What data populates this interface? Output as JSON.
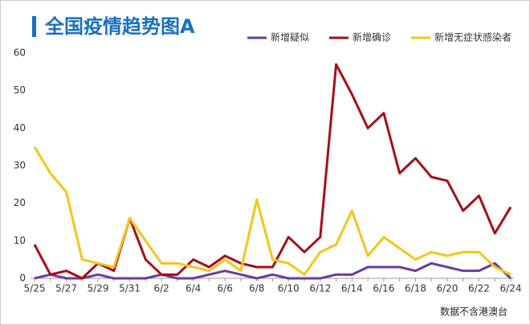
{
  "chart_data": {
    "type": "line",
    "title": "全国疫情趋势图A",
    "note": "数据不含港澳台",
    "categories": [
      "5/25",
      null,
      "5/27",
      null,
      "5/29",
      null,
      "5/31",
      null,
      "6/2",
      null,
      "6/4",
      null,
      "6/6",
      null,
      "6/8",
      null,
      "6/10",
      null,
      "6/12",
      null,
      "6/14",
      null,
      "6/16",
      null,
      "6/18",
      null,
      "6/20",
      null,
      "6/22",
      null,
      "6/24"
    ],
    "series": [
      {
        "name": "新增疑似",
        "color": "#6a3d9a",
        "values": [
          0,
          1,
          0,
          0,
          1,
          0,
          0,
          0,
          1,
          0,
          0,
          1,
          2,
          1,
          0,
          1,
          0,
          0,
          0,
          1,
          1,
          3,
          3,
          3,
          2,
          4,
          3,
          2,
          2,
          4,
          0
        ]
      },
      {
        "name": "新增确诊",
        "color": "#a50f15",
        "values": [
          9,
          1,
          2,
          0,
          4,
          2,
          16,
          5,
          1,
          1,
          5,
          3,
          6,
          4,
          3,
          3,
          11,
          7,
          11,
          57,
          49,
          40,
          44,
          28,
          32,
          27,
          26,
          18,
          22,
          12,
          19
        ]
      },
      {
        "name": "新增无症状感染者",
        "color": "#f5c518",
        "values": [
          35,
          28,
          23,
          5,
          4,
          3,
          16,
          10,
          4,
          4,
          3,
          2,
          5,
          2,
          21,
          5,
          4,
          1,
          7,
          9,
          18,
          6,
          11,
          8,
          5,
          7,
          6,
          7,
          7,
          3,
          1
        ]
      }
    ],
    "ylim": [
      0,
      60
    ],
    "yticks": [
      0,
      10,
      20,
      30,
      40,
      50,
      60
    ],
    "grid": false
  }
}
